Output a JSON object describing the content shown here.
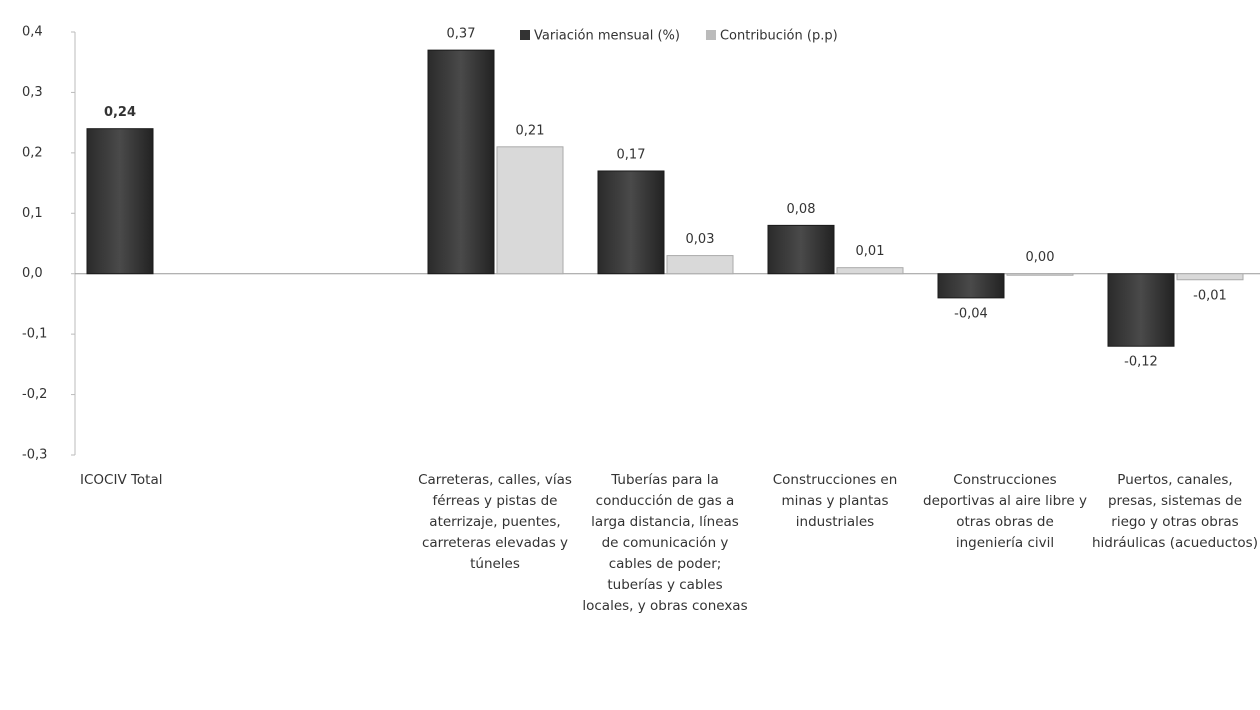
{
  "chart_data": {
    "type": "bar",
    "categories": [
      "ICOCIV Total",
      "Carreteras, calles, vías férreas y pistas de aterrizaje, puentes, carreteras elevadas y túneles",
      "Tuberías para la conducción de gas a larga distancia, líneas de comunicación y cables de poder; tuberías y cables locales, y obras conexas",
      "Construcciones en minas y plantas industriales",
      "Construcciones deportivas al aire libre y otras obras de ingeniería civil",
      "Puertos, canales, presas, sistemas de riego y otras obras hidráulicas (acueductos)"
    ],
    "series": [
      {
        "name": "Variación mensual (%)",
        "color": "#3b3b3b",
        "values": [
          0.24,
          0.37,
          0.17,
          0.08,
          -0.04,
          -0.12
        ],
        "value_labels": [
          "0,24",
          "0,37",
          "0,17",
          "0,08",
          "-0,04",
          "-0,12"
        ]
      },
      {
        "name": "Contribución (p.p)",
        "color": "#d9d9d9",
        "values": [
          null,
          0.21,
          0.03,
          0.01,
          0.0,
          -0.01
        ],
        "value_labels": [
          null,
          "0,21",
          "0,03",
          "0,01",
          "0,00",
          "-0,01"
        ]
      }
    ],
    "ylim": [
      -0.3,
      0.4
    ],
    "yticks": [
      {
        "value": 0.4,
        "label": "0,4"
      },
      {
        "value": 0.3,
        "label": "0,3"
      },
      {
        "value": 0.2,
        "label": "0,2"
      },
      {
        "value": 0.1,
        "label": "0,1"
      },
      {
        "value": 0.0,
        "label": "0,0"
      },
      {
        "value": -0.1,
        "label": "-0,1"
      },
      {
        "value": -0.2,
        "label": "-0,2"
      },
      {
        "value": -0.3,
        "label": "-0,3"
      }
    ],
    "legend": "top"
  }
}
